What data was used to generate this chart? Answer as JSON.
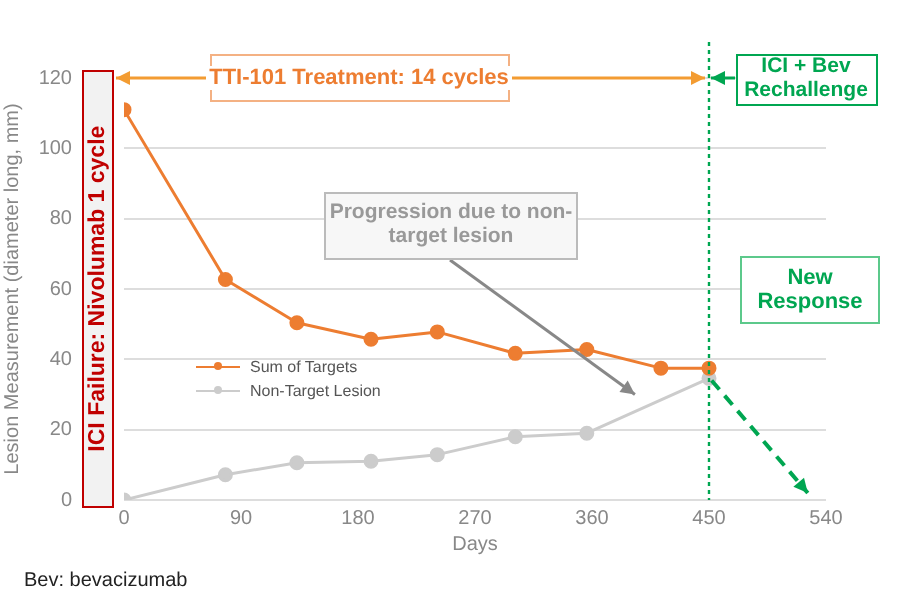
{
  "chart_data": {
    "type": "line",
    "xlabel": "Days",
    "ylabel": "Lesion Measurement (diameter long, mm)",
    "xlim": [
      0,
      540
    ],
    "xticks": [
      0,
      90,
      180,
      270,
      360,
      450,
      540
    ],
    "ylim": [
      0,
      120
    ],
    "yticks": [
      0,
      20,
      40,
      60,
      80,
      100,
      120
    ],
    "grid": "y",
    "legend": "left",
    "marker": "circle",
    "x": [
      0,
      78,
      133,
      190,
      241,
      301,
      356,
      413,
      450
    ],
    "series": [
      {
        "name": "Sum of Targets",
        "color": "#ed7d31",
        "values": [
          111,
          62.7,
          50.4,
          45.7,
          47.8,
          41.7,
          42.8,
          37.5,
          37.5
        ]
      },
      {
        "name": "Non-Target Lesion",
        "color": "#cccccc",
        "x": [
          0,
          78,
          133,
          190,
          241,
          301,
          356,
          450
        ],
        "values": [
          0,
          7.2,
          10.6,
          11,
          12.9,
          18,
          19,
          34.6
        ]
      }
    ],
    "ref_lines": [
      {
        "axis": "x",
        "value": 450,
        "label": "ICI + Bev Rechallenge",
        "color": "#00a651",
        "line_style": "dotted"
      }
    ],
    "annotations": [
      "TTI-101 Treatment: 14 cycles",
      "Progression due to non-target lesion",
      "New Response",
      "ICI Failure: Nivolumab 1 cycle",
      "Bev: bevacizumab"
    ]
  }
}
